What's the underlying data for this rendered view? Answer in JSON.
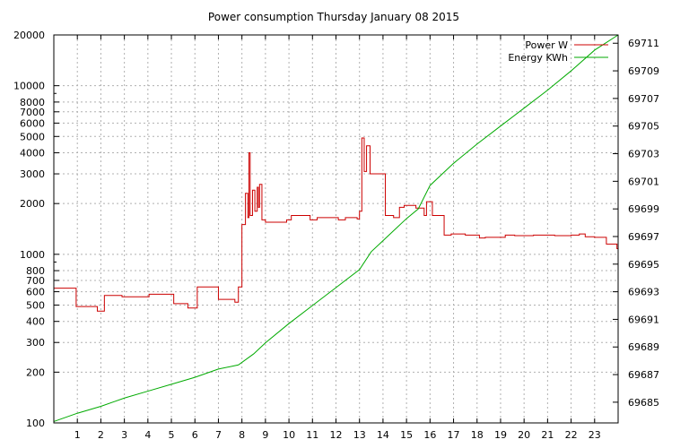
{
  "chart_data": {
    "type": "line",
    "title": "Power consumption Thursday January 08 2015",
    "xlabel": "",
    "ylabel": "",
    "xlim": [
      0,
      24
    ],
    "x_ticks": [
      1,
      2,
      3,
      4,
      5,
      6,
      7,
      8,
      9,
      10,
      11,
      12,
      13,
      14,
      15,
      16,
      17,
      18,
      19,
      20,
      21,
      22,
      23
    ],
    "y_left": {
      "scale": "log",
      "range": [
        100,
        20000
      ],
      "ticks": [
        100,
        200,
        300,
        400,
        500,
        600,
        700,
        800,
        1000,
        2000,
        3000,
        4000,
        5000,
        6000,
        7000,
        8000,
        10000,
        20000
      ]
    },
    "y_right": {
      "scale": "linear",
      "range": [
        69683.5,
        69711.6
      ],
      "ticks": [
        69685,
        69687,
        69689,
        69691,
        69693,
        69695,
        69697,
        69699,
        69701,
        69703,
        69705,
        69707,
        69709,
        69711
      ]
    },
    "grid": true,
    "legend_position": "top-right",
    "series": [
      {
        "name": "Power W",
        "color": "#cc0000",
        "axis": "left",
        "step": true,
        "x": [
          0,
          0.85,
          0.95,
          1.85,
          2.15,
          2.9,
          4.05,
          5.1,
          5.7,
          6.1,
          7.0,
          7.7,
          7.85,
          8.0,
          8.15,
          8.25,
          8.3,
          8.35,
          8.45,
          8.55,
          8.65,
          8.7,
          8.75,
          8.85,
          9.0,
          9.9,
          10.1,
          10.9,
          11.2,
          12.1,
          12.4,
          12.9,
          13.0,
          13.1,
          13.2,
          13.3,
          13.45,
          14.1,
          14.45,
          14.7,
          14.9,
          15.1,
          15.4,
          15.75,
          15.85,
          16.1,
          16.6,
          16.9,
          17.5,
          18.1,
          18.35,
          19.2,
          19.6,
          20.4,
          21.3,
          22.0,
          22.35,
          22.6,
          23.0,
          23.5,
          23.95
        ],
        "values": [
          630,
          630,
          490,
          460,
          570,
          560,
          580,
          510,
          480,
          640,
          540,
          520,
          640,
          1500,
          2300,
          1650,
          4000,
          1700,
          2400,
          1800,
          2500,
          1900,
          2600,
          1600,
          1550,
          1600,
          1700,
          1600,
          1650,
          1600,
          1650,
          1620,
          1800,
          4900,
          3100,
          4400,
          3000,
          1700,
          1650,
          1900,
          1950,
          1950,
          1880,
          1700,
          2050,
          1700,
          1300,
          1320,
          1300,
          1250,
          1260,
          1300,
          1290,
          1300,
          1290,
          1300,
          1320,
          1270,
          1260,
          1150,
          1080
        ]
      },
      {
        "name": "Energy KWh",
        "color": "#00aa00",
        "axis": "right",
        "step": false,
        "x": [
          0,
          1,
          2,
          3,
          4,
          5,
          6,
          7,
          7.85,
          8.5,
          9,
          10,
          11,
          12,
          13,
          13.5,
          14,
          15,
          15.5,
          16,
          17,
          18,
          19,
          20,
          21,
          22,
          23,
          24
        ],
        "values": [
          69683.6,
          69684.2,
          69684.7,
          69685.3,
          69685.8,
          69686.3,
          69686.8,
          69687.4,
          69687.7,
          69688.5,
          69689.3,
          69690.7,
          69692.0,
          69693.3,
          69694.6,
          69695.9,
          69696.7,
          69698.3,
          69699.0,
          69700.7,
          69702.3,
          69703.7,
          69705.0,
          69706.3,
          69707.6,
          69709.0,
          69710.5,
          69711.6
        ]
      }
    ]
  }
}
